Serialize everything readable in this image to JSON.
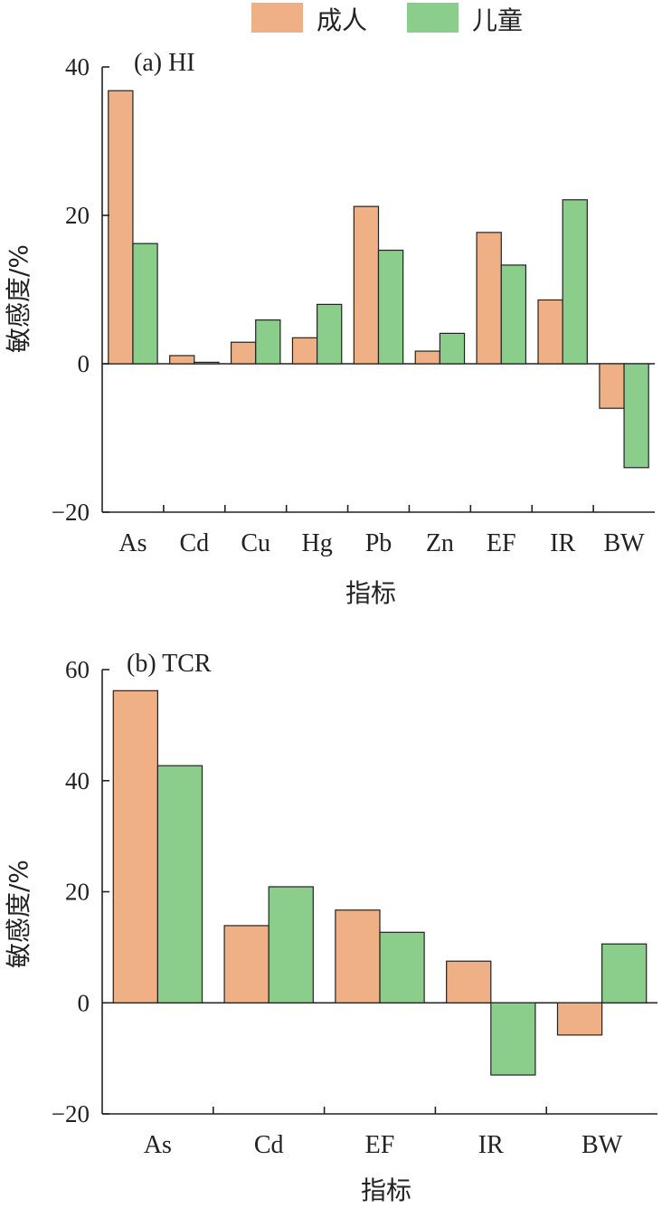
{
  "colors": {
    "adult": "#F0B085",
    "child": "#8BCE8C"
  },
  "legend": [
    {
      "name": "成人",
      "color": "#F0B085"
    },
    {
      "name": "儿童",
      "color": "#8BCE8C"
    }
  ],
  "chart_data": [
    {
      "type": "bar",
      "title": "(a) HI",
      "xlabel": "指标",
      "ylabel": "敏感度/%",
      "ylim": [
        -20,
        40
      ],
      "yticks": [
        -20,
        0,
        20,
        40
      ],
      "categories": [
        "As",
        "Cd",
        "Cu",
        "Hg",
        "Pb",
        "Zn",
        "EF",
        "IR",
        "BW"
      ],
      "series": [
        {
          "name": "成人",
          "values": [
            36.8,
            1.1,
            2.9,
            3.5,
            21.2,
            1.7,
            17.7,
            8.6,
            -6.0
          ]
        },
        {
          "name": "儿童",
          "values": [
            16.2,
            0.2,
            5.9,
            8.0,
            15.3,
            4.1,
            13.3,
            22.1,
            -14.0
          ]
        }
      ]
    },
    {
      "type": "bar",
      "title": "(b) TCR",
      "xlabel": "指标",
      "ylabel": "敏感度/%",
      "ylim": [
        -20,
        60
      ],
      "yticks": [
        -20,
        0,
        20,
        40,
        60
      ],
      "categories": [
        "As",
        "Cd",
        "EF",
        "IR",
        "BW"
      ],
      "series": [
        {
          "name": "成人",
          "values": [
            56.2,
            13.9,
            16.7,
            7.5,
            -5.8
          ]
        },
        {
          "name": "儿童",
          "values": [
            42.7,
            20.9,
            12.7,
            -13.0,
            10.6
          ]
        }
      ]
    }
  ]
}
